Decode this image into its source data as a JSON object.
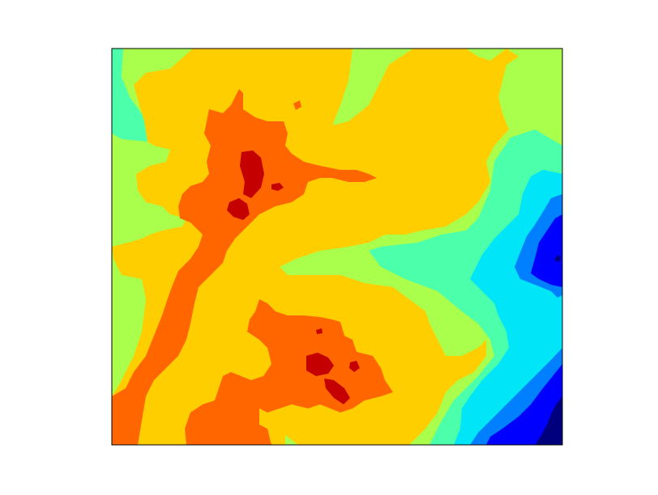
{
  "chart_data": {
    "type": "heatmap",
    "subtype": "filled-contour",
    "title": "",
    "xlabel": "",
    "ylabel": "",
    "ticks": "none",
    "grid": false,
    "legend": "none",
    "colormap": "jet",
    "levels": 9,
    "level_colors": [
      "#00007f",
      "#0000ff",
      "#007fff",
      "#00e5f7",
      "#4cffaa",
      "#aaff4c",
      "#ffce00",
      "#ff6600",
      "#c40000"
    ],
    "description_regions": [
      {
        "name": "peak-upper-left",
        "level": 8
      },
      {
        "name": "peak-lower-center",
        "level": 8
      },
      {
        "name": "valley-right-edge",
        "level": 1
      },
      {
        "name": "valley-bottom-right",
        "level": 0
      }
    ]
  }
}
